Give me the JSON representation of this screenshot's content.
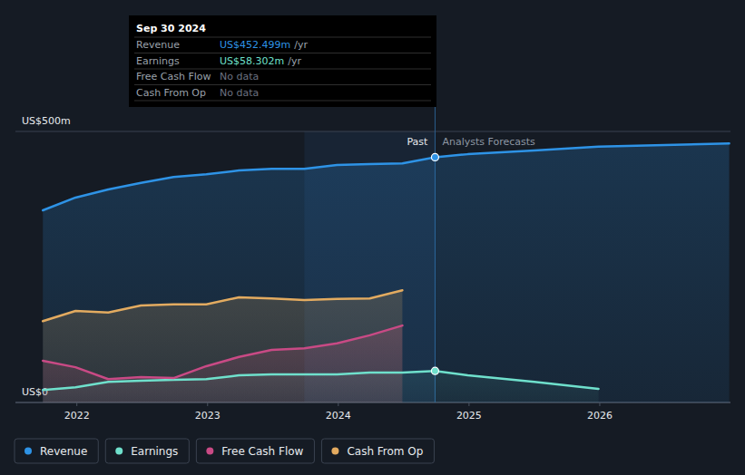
{
  "chart_data": {
    "type": "line",
    "x": [
      2021.74,
      2021.99,
      2022.24,
      2022.49,
      2022.74,
      2022.99,
      2023.24,
      2023.49,
      2023.74,
      2023.99,
      2024.24,
      2024.49,
      2024.74,
      2024.99,
      2025.5,
      2025.99,
      2026.99
    ],
    "series": [
      {
        "name": "Revenue",
        "color": "#2e93e6",
        "values": [
          354.5,
          378,
          393,
          405,
          416,
          421,
          428,
          431,
          431,
          438,
          440,
          441,
          452.5,
          458,
          465,
          472,
          478
        ]
      },
      {
        "name": "Earnings",
        "color": "#6fe0cc",
        "values": [
          23,
          28,
          38,
          40,
          42,
          43,
          50,
          52,
          52,
          52,
          55,
          55,
          58.3,
          50,
          38,
          25,
          null
        ]
      },
      {
        "name": "Free Cash Flow",
        "color": "#c94a85",
        "values": [
          77,
          65,
          43,
          47,
          45,
          67,
          84,
          97,
          100,
          109,
          124,
          142,
          null,
          null,
          null,
          null,
          null
        ]
      },
      {
        "name": "Cash From Op",
        "color": "#e3ab60",
        "values": [
          150,
          169,
          166,
          179,
          181,
          181,
          194,
          192,
          189,
          191,
          192,
          207,
          null,
          null,
          null,
          null,
          null
        ]
      }
    ],
    "xlim": [
      2021.53,
      2027
    ],
    "xticks": [
      2022,
      2023,
      2024,
      2025,
      2026
    ],
    "ylim": [
      0,
      500
    ],
    "yticks": [
      {
        "value": 0,
        "label": "US$0"
      },
      {
        "value": 500,
        "label": "US$500m"
      }
    ],
    "grid": true,
    "legend": "bottom",
    "annotations": [
      {
        "text": "Past",
        "x": 2024.74
      },
      {
        "text": "Analysts Forecasts",
        "x": 2024.74
      }
    ],
    "tooltip": {
      "title": "Sep 30 2024",
      "rows": [
        {
          "label": "Revenue",
          "value": "US$452.499m",
          "unit": "/yr"
        },
        {
          "label": "Earnings",
          "value": "US$58.302m",
          "unit": "/yr"
        },
        {
          "label": "Free Cash Flow",
          "value": "No data"
        },
        {
          "label": "Cash From Op",
          "value": "No data"
        }
      ]
    }
  }
}
